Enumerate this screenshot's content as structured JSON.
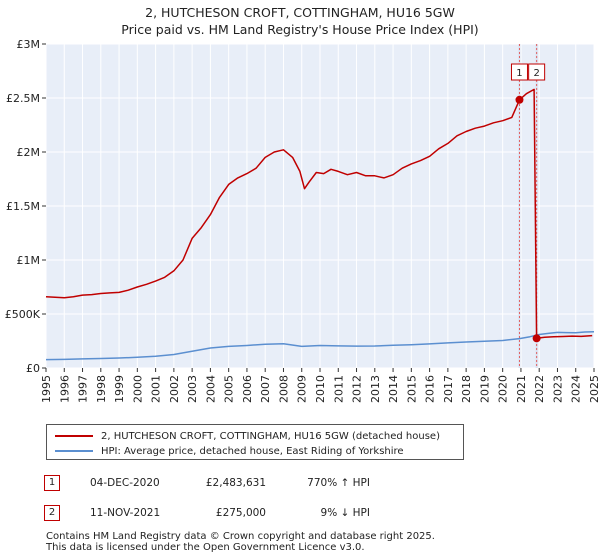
{
  "title": {
    "line1": "2, HUTCHESON CROFT, COTTINGHAM, HU16 5GW",
    "line2": "Price paid vs. HM Land Registry's House Price Index (HPI)"
  },
  "chart_data": {
    "type": "line",
    "xlim": [
      1995,
      2025
    ],
    "ylim": [
      0,
      3000000
    ],
    "x_ticks": [
      "1995",
      "1996",
      "1997",
      "1998",
      "1999",
      "2000",
      "2001",
      "2002",
      "2003",
      "2004",
      "2005",
      "2006",
      "2007",
      "2008",
      "2009",
      "2010",
      "2011",
      "2012",
      "2013",
      "2014",
      "2015",
      "2016",
      "2017",
      "2018",
      "2019",
      "2020",
      "2021",
      "2022",
      "2023",
      "2024",
      "2025"
    ],
    "y_ticks": [
      {
        "value": 0,
        "label": "£0"
      },
      {
        "value": 500000,
        "label": "£500K"
      },
      {
        "value": 1000000,
        "label": "£1M"
      },
      {
        "value": 1500000,
        "label": "£1.5M"
      },
      {
        "value": 2000000,
        "label": "£2M"
      },
      {
        "value": 2500000,
        "label": "£2.5M"
      },
      {
        "value": 3000000,
        "label": "£3M"
      }
    ],
    "grid": true,
    "series": [
      {
        "name": "2, HUTCHESON CROFT, COTTINGHAM, HU16 5GW (detached house)",
        "color": "#c00000",
        "points": [
          [
            1995.0,
            660000
          ],
          [
            1995.5,
            655000
          ],
          [
            1996.0,
            650000
          ],
          [
            1996.5,
            660000
          ],
          [
            1997.0,
            675000
          ],
          [
            1997.5,
            680000
          ],
          [
            1998.0,
            690000
          ],
          [
            1998.5,
            695000
          ],
          [
            1999.0,
            700000
          ],
          [
            1999.5,
            720000
          ],
          [
            2000.0,
            750000
          ],
          [
            2000.5,
            775000
          ],
          [
            2001.0,
            805000
          ],
          [
            2001.5,
            840000
          ],
          [
            2002.0,
            900000
          ],
          [
            2002.5,
            1000000
          ],
          [
            2003.0,
            1200000
          ],
          [
            2003.5,
            1300000
          ],
          [
            2004.0,
            1420000
          ],
          [
            2004.5,
            1580000
          ],
          [
            2005.0,
            1700000
          ],
          [
            2005.5,
            1760000
          ],
          [
            2006.0,
            1800000
          ],
          [
            2006.5,
            1850000
          ],
          [
            2007.0,
            1950000
          ],
          [
            2007.5,
            2000000
          ],
          [
            2008.0,
            2020000
          ],
          [
            2008.5,
            1950000
          ],
          [
            2008.9,
            1820000
          ],
          [
            2009.15,
            1660000
          ],
          [
            2009.4,
            1720000
          ],
          [
            2009.8,
            1810000
          ],
          [
            2010.2,
            1800000
          ],
          [
            2010.6,
            1840000
          ],
          [
            2011.0,
            1820000
          ],
          [
            2011.5,
            1790000
          ],
          [
            2012.0,
            1810000
          ],
          [
            2012.5,
            1780000
          ],
          [
            2013.0,
            1780000
          ],
          [
            2013.5,
            1760000
          ],
          [
            2014.0,
            1790000
          ],
          [
            2014.5,
            1850000
          ],
          [
            2015.0,
            1890000
          ],
          [
            2015.5,
            1920000
          ],
          [
            2016.0,
            1960000
          ],
          [
            2016.5,
            2030000
          ],
          [
            2017.0,
            2080000
          ],
          [
            2017.5,
            2150000
          ],
          [
            2018.0,
            2190000
          ],
          [
            2018.5,
            2220000
          ],
          [
            2019.0,
            2240000
          ],
          [
            2019.5,
            2270000
          ],
          [
            2020.0,
            2290000
          ],
          [
            2020.5,
            2320000
          ],
          [
            2020.92,
            2483631
          ],
          [
            2021.3,
            2540000
          ],
          [
            2021.72,
            2580000
          ],
          [
            2021.86,
            275000
          ],
          [
            2022.3,
            285000
          ],
          [
            2022.8,
            290000
          ],
          [
            2023.3,
            292000
          ],
          [
            2023.8,
            295000
          ],
          [
            2024.3,
            293000
          ],
          [
            2024.9,
            300000
          ]
        ]
      },
      {
        "name": "HPI: Average price, detached house, East Riding of Yorkshire",
        "color": "#5b8fd0",
        "points": [
          [
            1995.0,
            78000
          ],
          [
            1996.0,
            80000
          ],
          [
            1997.0,
            84000
          ],
          [
            1998.0,
            88000
          ],
          [
            1999.0,
            93000
          ],
          [
            2000.0,
            99000
          ],
          [
            2001.0,
            108000
          ],
          [
            2002.0,
            125000
          ],
          [
            2003.0,
            155000
          ],
          [
            2004.0,
            185000
          ],
          [
            2005.0,
            200000
          ],
          [
            2006.0,
            208000
          ],
          [
            2007.0,
            220000
          ],
          [
            2008.0,
            225000
          ],
          [
            2009.0,
            200000
          ],
          [
            2010.0,
            208000
          ],
          [
            2011.0,
            205000
          ],
          [
            2012.0,
            203000
          ],
          [
            2013.0,
            204000
          ],
          [
            2014.0,
            210000
          ],
          [
            2015.0,
            216000
          ],
          [
            2016.0,
            223000
          ],
          [
            2017.0,
            232000
          ],
          [
            2018.0,
            241000
          ],
          [
            2019.0,
            248000
          ],
          [
            2020.0,
            255000
          ],
          [
            2020.92,
            272000
          ],
          [
            2021.5,
            290000
          ],
          [
            2022.0,
            310000
          ],
          [
            2022.5,
            320000
          ],
          [
            2023.0,
            330000
          ],
          [
            2023.5,
            328000
          ],
          [
            2024.0,
            326000
          ],
          [
            2024.5,
            333000
          ],
          [
            2025.0,
            335000
          ]
        ]
      }
    ],
    "markers": [
      {
        "label": "1",
        "x": 2020.92,
        "y": 2483631
      },
      {
        "label": "2",
        "x": 2021.86,
        "y": 275000
      }
    ]
  },
  "legend": {
    "property_label": "2, HUTCHESON CROFT, COTTINGHAM, HU16 5GW (detached house)",
    "hpi_label": "HPI: Average price, detached house, East Riding of Yorkshire"
  },
  "transactions": [
    {
      "num": "1",
      "date": "04-DEC-2020",
      "price": "£2,483,631",
      "hpi": "770% ↑ HPI"
    },
    {
      "num": "2",
      "date": "11-NOV-2021",
      "price": "£275,000",
      "hpi": "9% ↓ HPI"
    }
  ],
  "footer": {
    "line1": "Contains HM Land Registry data © Crown copyright and database right 2025.",
    "line2": "This data is licensed under the Open Government Licence v3.0."
  }
}
